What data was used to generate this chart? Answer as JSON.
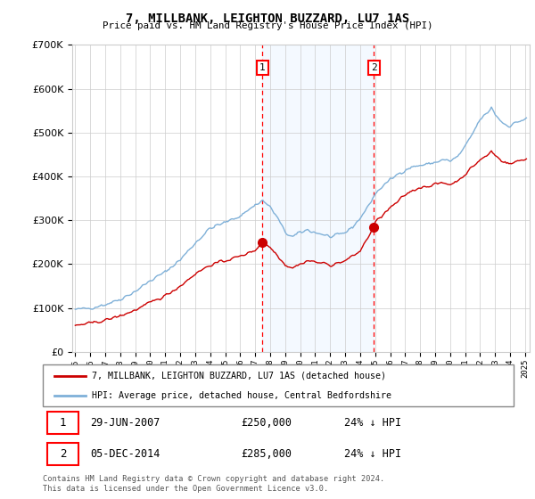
{
  "title": "7, MILLBANK, LEIGHTON BUZZARD, LU7 1AS",
  "subtitle": "Price paid vs. HM Land Registry's House Price Index (HPI)",
  "legend_line1": "7, MILLBANK, LEIGHTON BUZZARD, LU7 1AS (detached house)",
  "legend_line2": "HPI: Average price, detached house, Central Bedfordshire",
  "annotation_text": "Contains HM Land Registry data © Crown copyright and database right 2024.\nThis data is licensed under the Open Government Licence v3.0.",
  "sale1_date": "29-JUN-2007",
  "sale1_price": 250000,
  "sale1_hpi_diff": "24% ↓ HPI",
  "sale2_date": "05-DEC-2014",
  "sale2_price": 285000,
  "sale2_hpi_diff": "24% ↓ HPI",
  "xmin": 1994.8,
  "xmax": 2025.3,
  "ymin": 0,
  "ymax": 700000,
  "yticks": [
    0,
    100000,
    200000,
    300000,
    400000,
    500000,
    600000,
    700000
  ],
  "sale1_x": 2007.49,
  "sale2_x": 2014.92,
  "hpi_color": "#7fb0d8",
  "price_color": "#cc0000",
  "shade_color": "#ddeeff",
  "grid_color": "#cccccc",
  "background_color": "#ffffff"
}
